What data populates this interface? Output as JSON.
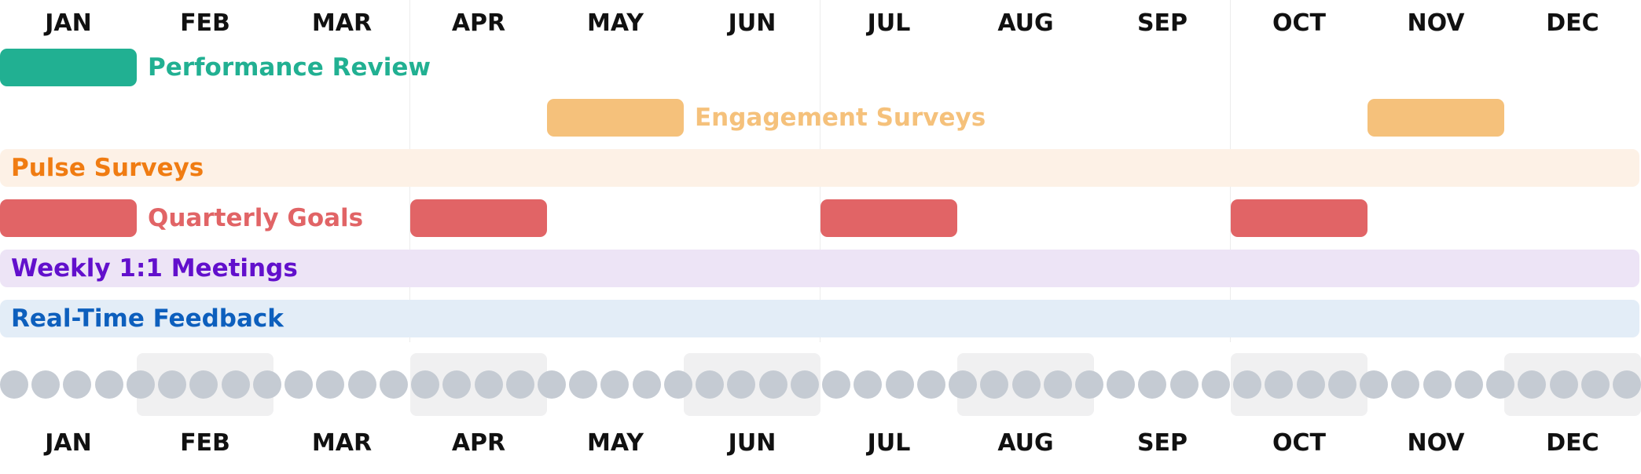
{
  "timeline": {
    "months": [
      "JAN",
      "FEB",
      "MAR",
      "APR",
      "MAY",
      "JUN",
      "JUL",
      "AUG",
      "SEP",
      "OCT",
      "NOV",
      "DEC"
    ],
    "weeks_count": 52,
    "shaded_months": [
      1,
      3,
      5,
      7,
      9,
      11
    ],
    "quarter_start_months": [
      3,
      6,
      9
    ]
  },
  "rows": [
    {
      "label": "Performance Review",
      "style": "blocks",
      "color": "#21b092",
      "text_color": "#21b092",
      "spans_months": [
        [
          0,
          1
        ]
      ]
    },
    {
      "label": "Engagement Surveys",
      "style": "blocks",
      "color": "#f5c17b",
      "text_color": "#f5c17b",
      "spans_months": [
        [
          4,
          5
        ],
        [
          10,
          11
        ]
      ]
    },
    {
      "label": "Pulse Surveys",
      "style": "full",
      "color": "#fdf1e6",
      "text_color": "#f07c12",
      "spans_months": [
        [
          0,
          12
        ]
      ]
    },
    {
      "label": "Quarterly Goals",
      "style": "blocks",
      "color": "#e16466",
      "text_color": "#e16466",
      "spans_months": [
        [
          0,
          1
        ],
        [
          3,
          4
        ],
        [
          6,
          7
        ],
        [
          9,
          10
        ]
      ]
    },
    {
      "label": "Weekly 1:1 Meetings",
      "style": "full",
      "color": "#ede4f6",
      "text_color": "#6210cc",
      "spans_months": [
        [
          0,
          12
        ]
      ]
    },
    {
      "label": "Real-Time Feedback",
      "style": "full",
      "color": "#e3edf7",
      "text_color": "#0d5fbd",
      "spans_months": [
        [
          0,
          12
        ]
      ]
    }
  ]
}
